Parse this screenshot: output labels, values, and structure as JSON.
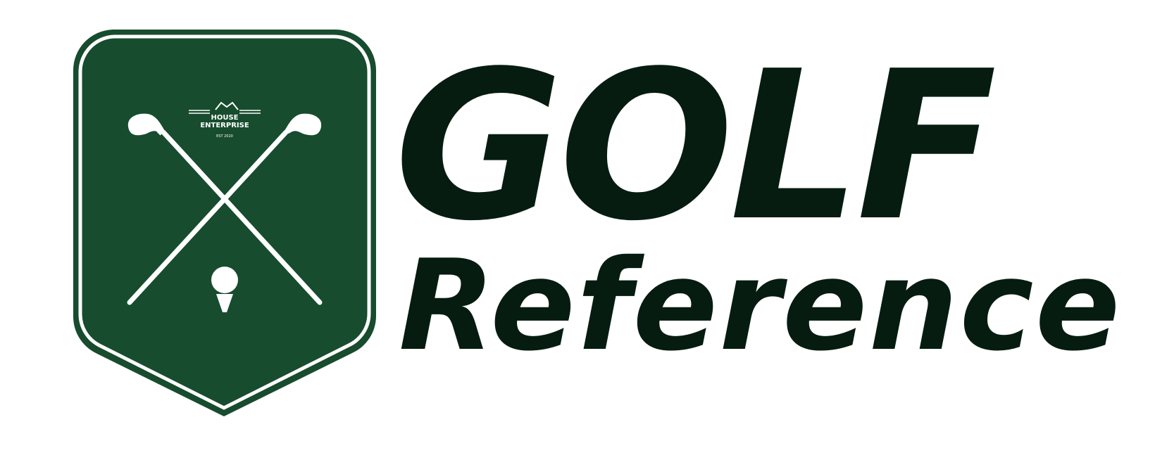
{
  "brand": {
    "title": "GOLF",
    "subtitle": "Reference",
    "crest_house_label": "HOUSE",
    "crest_enterprise_label": "ENTERPRISE",
    "crest_est_label": "EST 2020"
  },
  "colors": {
    "crest_green": "#174c2e",
    "crest_outline": "#174c2e",
    "inner_stroke": "#ffffff",
    "wordmark": "#061c10"
  },
  "icons": {
    "left_club": "golf-club-icon",
    "right_club": "golf-club-icon",
    "ball": "golf-ball-on-tee-icon",
    "house": "house-roof-icon"
  }
}
